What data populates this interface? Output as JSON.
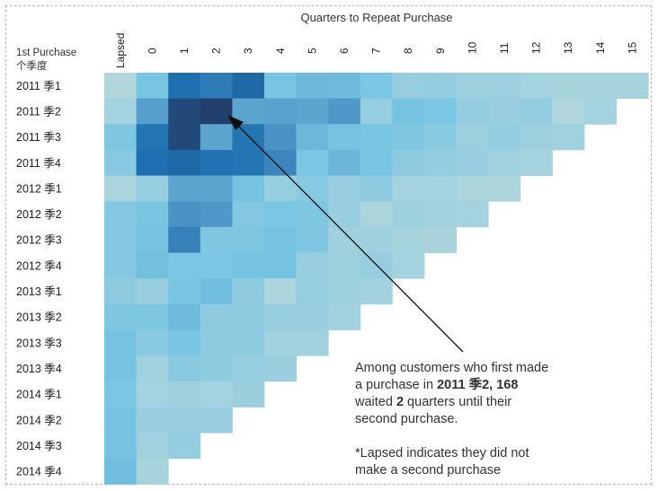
{
  "chart_data": {
    "type": "heatmap",
    "title": "Quarters to Repeat Purchase",
    "row_header": [
      "1st Purchase",
      "个季度"
    ],
    "columns": [
      "Lapsed",
      "0",
      "1",
      "2",
      "3",
      "4",
      "5",
      "6",
      "7",
      "8",
      "9",
      "10",
      "11",
      "12",
      "13",
      "14",
      "15"
    ],
    "rows": [
      "2011 季1",
      "2011 季2",
      "2011 季3",
      "2011 季4",
      "2012 季1",
      "2012 季2",
      "2012 季3",
      "2012 季4",
      "2013 季1",
      "2013 季2",
      "2013 季3",
      "2013 季4",
      "2014 季1",
      "2014 季2",
      "2014 季3",
      "2014 季4"
    ],
    "values": [
      [
        20,
        60,
        130,
        120,
        135,
        60,
        70,
        68,
        58,
        40,
        42,
        35,
        35,
        30,
        28,
        28,
        28
      ],
      [
        30,
        90,
        160,
        168,
        85,
        88,
        85,
        95,
        40,
        62,
        58,
        42,
        38,
        42,
        22,
        30
      ],
      [
        55,
        125,
        160,
        85,
        125,
        100,
        70,
        62,
        60,
        55,
        48,
        35,
        42,
        35,
        32
      ],
      [
        50,
        130,
        135,
        128,
        125,
        110,
        58,
        72,
        60,
        45,
        42,
        38,
        32,
        30
      ],
      [
        25,
        40,
        85,
        85,
        62,
        40,
        50,
        38,
        45,
        30,
        30,
        25,
        25
      ],
      [
        52,
        60,
        100,
        95,
        52,
        58,
        55,
        38,
        25,
        35,
        32,
        30
      ],
      [
        52,
        62,
        115,
        55,
        55,
        62,
        55,
        34,
        34,
        28,
        26
      ],
      [
        52,
        65,
        58,
        58,
        62,
        62,
        38,
        35,
        40,
        30
      ],
      [
        45,
        38,
        60,
        66,
        45,
        25,
        40,
        35,
        32
      ],
      [
        55,
        55,
        68,
        45,
        45,
        38,
        38,
        32
      ],
      [
        62,
        48,
        60,
        45,
        45,
        32,
        32
      ],
      [
        62,
        32,
        48,
        45,
        40,
        36
      ],
      [
        58,
        30,
        34,
        30,
        36
      ],
      [
        62,
        38,
        38,
        38
      ],
      [
        62,
        32,
        42
      ],
      [
        66,
        28
      ]
    ],
    "value_note": "Estimated from color intensity; 2011 季2 at 2 quarters = 168",
    "color_scale": [
      "#b3d6dc",
      "#78c5e2",
      "#4a92c4",
      "#1f6fb0",
      "#233f6b"
    ]
  },
  "annotation": {
    "line1": "Among customers who first made",
    "line2_pre": "a purchase in ",
    "line2_bold": "2011 季2, 168",
    "line3_pre": "waited ",
    "line3_bold": "2",
    "line3_post": " quarters until their",
    "line4": "second purchase.",
    "note1": "*Lapsed indicates they did not",
    "note2": "make a second purchase"
  }
}
